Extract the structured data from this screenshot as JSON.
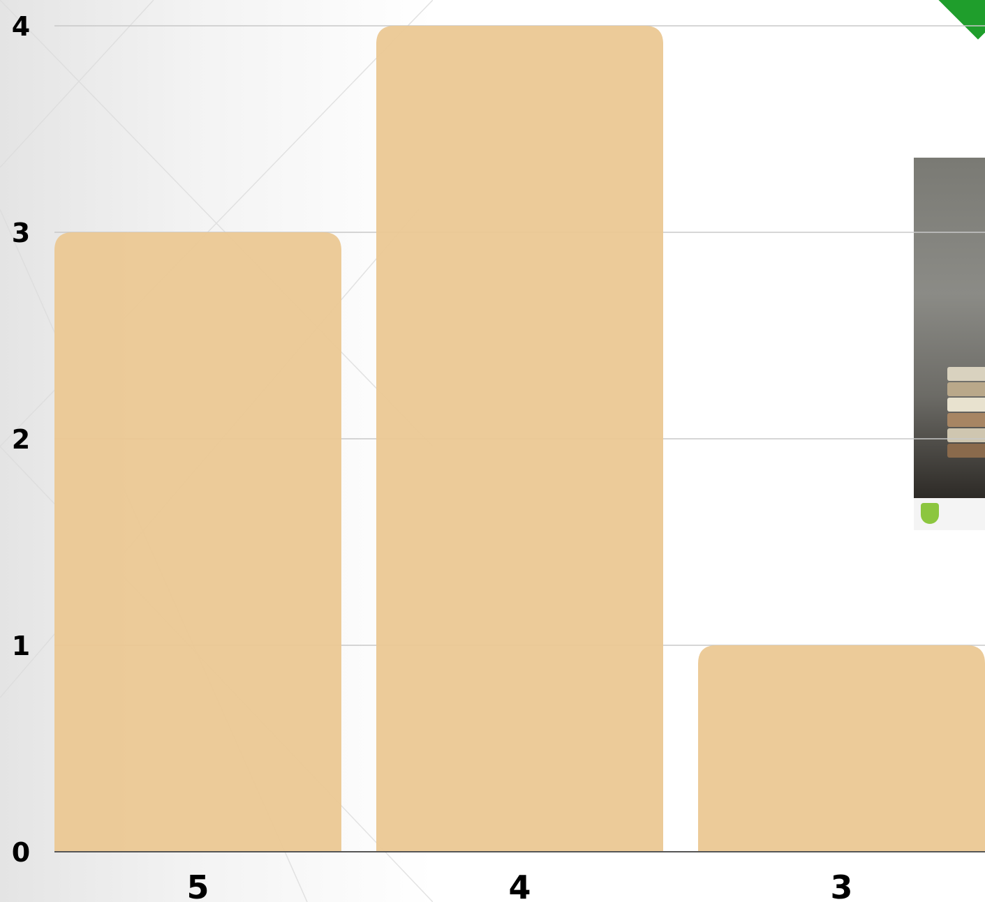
{
  "chart_data": {
    "type": "bar",
    "categories": [
      "5",
      "4",
      "3"
    ],
    "values": [
      3,
      4,
      1
    ],
    "title": "",
    "xlabel": "",
    "ylabel": "",
    "ylim": [
      0,
      4
    ],
    "yticks": [
      "0",
      "1",
      "2",
      "3",
      "4"
    ],
    "grid": true,
    "bar_color": "#ebc893",
    "gridline_color": "#c8c8c8",
    "axis_color": "#555555",
    "label_color": "#000000"
  },
  "decorations": {
    "corner_icon": "green-corner-ribbon-icon",
    "photo": "book-stack-photo",
    "photo_badge_icon": "stock-photo-badge-icon"
  }
}
